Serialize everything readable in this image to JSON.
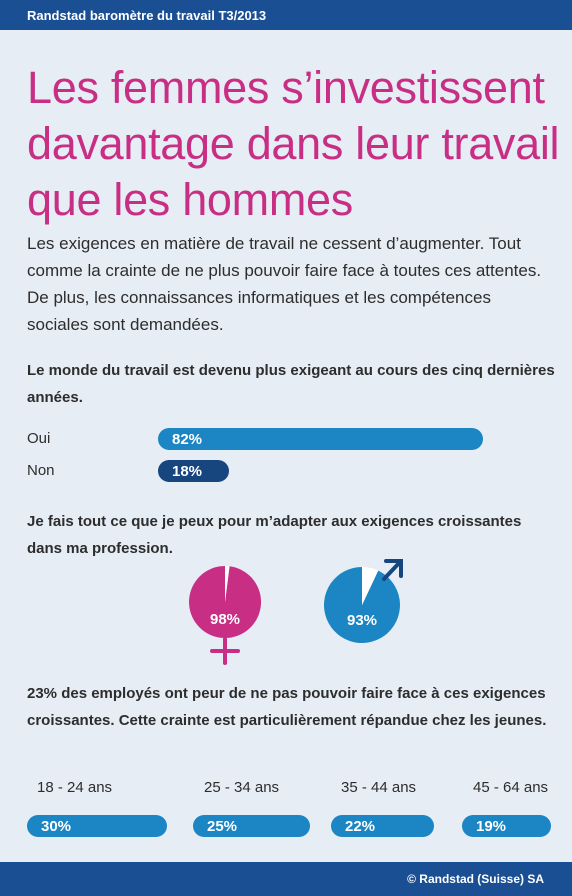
{
  "header": {
    "text": "Randstad baromètre du travail T3/2013"
  },
  "title": "Les femmes s’investissent davantage dans leur travail que les hommes",
  "intro": "Les exigences en matière de travail ne cessent d’augmenter. Tout comme la crainte de ne plus pouvoir faire face à toutes ces attentes. De plus, les connaissances informatiques et les compétences sociales sont demandées.",
  "footer": {
    "text": "© Randstad (Suisse) SA"
  },
  "colors": {
    "brand_blue": "#1b4f93",
    "accent_pink": "#c82f84",
    "bar_blue": "#1c86c4",
    "dark_blue": "#17467f"
  },
  "chart_data": [
    {
      "type": "bar",
      "title": "Le monde du travail est devenu plus exigeant au cours des cinq dernières années.",
      "categories": [
        "Oui",
        "Non"
      ],
      "values": [
        82,
        18
      ],
      "value_labels": [
        "82%",
        "18%"
      ],
      "xlim": [
        0,
        100
      ]
    },
    {
      "type": "pie",
      "title": "Je fais tout ce que je peux pour m’adapter aux exigences croissantes dans ma profession.",
      "series": [
        {
          "symbol": "female-symbol-icon",
          "value": 98,
          "label": "98%",
          "color": "#c82f84"
        },
        {
          "symbol": "male-symbol-icon",
          "value": 93,
          "label": "93%",
          "color": "#1c86c4"
        }
      ]
    },
    {
      "type": "bar",
      "title": "23% des employés ont peur de ne pas pouvoir faire face à ces exigences croissantes. Cette crainte est particulièrement répandue chez les jeunes.",
      "categories": [
        "18 - 24 ans",
        "25 - 34 ans",
        "35 - 44 ans",
        "45 - 64 ans"
      ],
      "values": [
        30,
        25,
        22,
        19
      ],
      "value_labels": [
        "30%",
        "25%",
        "22%",
        "19%"
      ]
    }
  ]
}
